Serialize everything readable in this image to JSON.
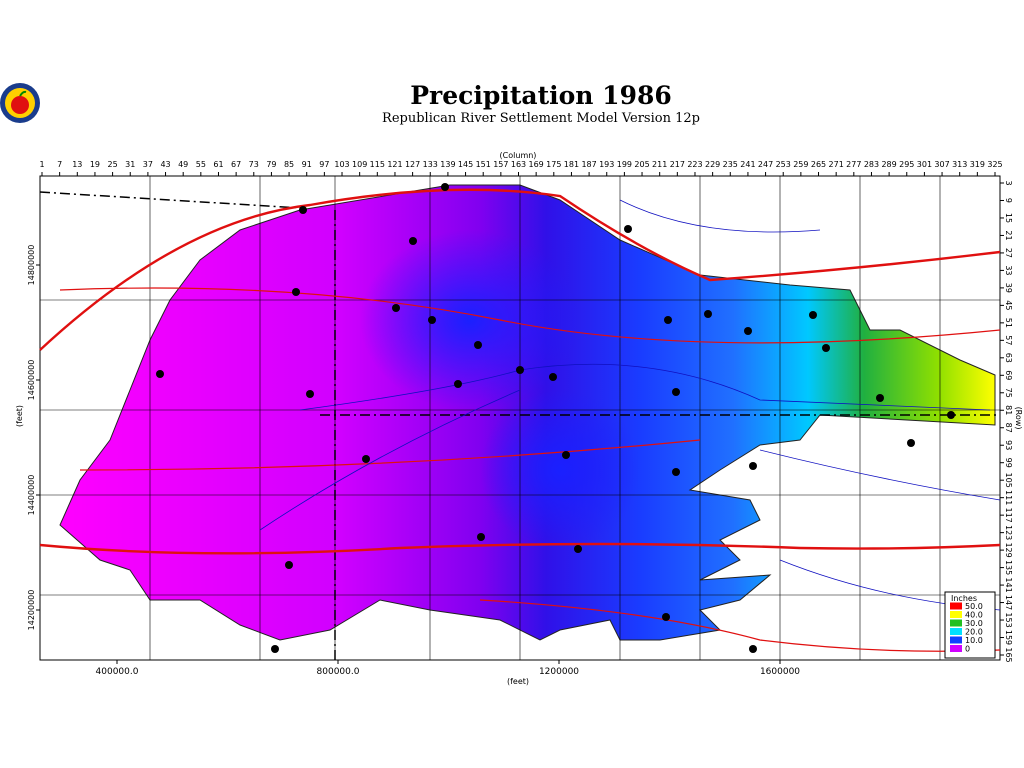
{
  "header": {
    "title": "Precipitation 1986",
    "subtitle": "Republican River Settlement Model Version 12p"
  },
  "column_axis": {
    "label": "(Column)",
    "ticks": [
      1,
      7,
      13,
      19,
      25,
      31,
      37,
      43,
      49,
      55,
      61,
      67,
      73,
      79,
      85,
      91,
      97,
      103,
      109,
      115,
      121,
      127,
      133,
      139,
      145,
      151,
      157,
      163,
      169,
      175,
      181,
      187,
      193,
      199,
      205,
      211,
      217,
      223,
      229,
      235,
      241,
      247,
      253,
      259,
      265,
      271,
      277,
      283,
      289,
      295,
      301,
      307,
      313,
      319,
      325
    ]
  },
  "row_axis": {
    "label": "(Row)",
    "ticks": [
      3,
      9,
      15,
      21,
      27,
      33,
      39,
      45,
      51,
      57,
      63,
      69,
      75,
      81,
      87,
      93,
      99,
      105,
      111,
      117,
      123,
      129,
      135,
      141,
      147,
      153,
      159,
      165
    ]
  },
  "y_axis": {
    "label": "(feet)",
    "ticks": [
      {
        "value": 14800000,
        "label": "14800000"
      },
      {
        "value": 14600000,
        "label": "14600000"
      },
      {
        "value": 14400000,
        "label": "14400000"
      },
      {
        "value": 14200000,
        "label": "14200000"
      }
    ]
  },
  "x_axis": {
    "label": "(feet)",
    "ticks": [
      {
        "value": 400000,
        "label": "400000.0"
      },
      {
        "value": 800000,
        "label": "800000.0"
      },
      {
        "value": 1200000,
        "label": "1200000"
      },
      {
        "value": 1600000,
        "label": "1600000"
      }
    ]
  },
  "legend": {
    "title": "Inches",
    "items": [
      {
        "label": "50.0",
        "color": "#ff0000"
      },
      {
        "label": "40.0",
        "color": "#ffff00"
      },
      {
        "label": "30.0",
        "color": "#20c020"
      },
      {
        "label": "20.0",
        "color": "#00e0ff"
      },
      {
        "label": "10.0",
        "color": "#1040ff"
      },
      {
        "label": "0",
        "color": "#d000ff"
      }
    ]
  }
}
